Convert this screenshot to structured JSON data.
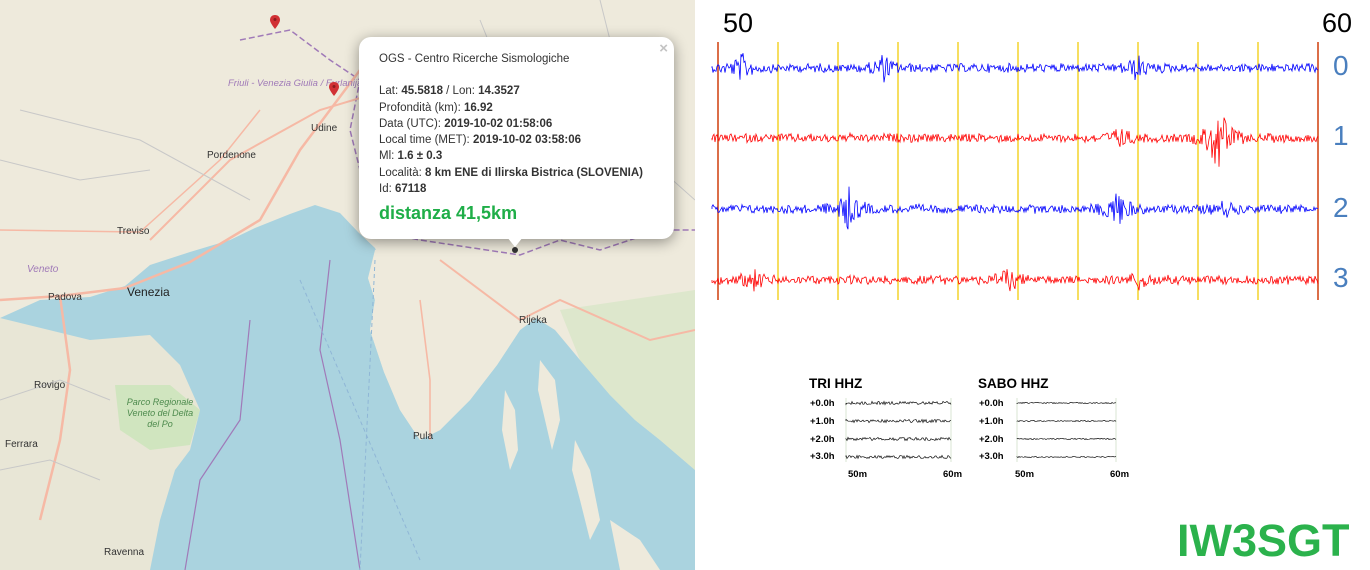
{
  "map": {
    "labels": {
      "friuli": "Friuli - Venezia Giulia / Furlanija - Julijska krajina",
      "udine": "Udine",
      "pordenone": "Pordenone",
      "treviso": "Treviso",
      "veneto": "Veneto",
      "venezia": "Venezia",
      "padova": "Padova",
      "rovigo": "Rovigo",
      "parco": "Parco Regionale Veneto del Delta del Po",
      "ferrara": "Ferrara",
      "ravenna": "Ravenna",
      "pula": "Pula",
      "rijeka": "Rijeka"
    },
    "colors": {
      "land": "#eeeadc",
      "sea": "#aad3df",
      "marker": "#d13034",
      "border": "#a07ab8",
      "road": "#f6b9a5"
    }
  },
  "popup": {
    "org": "OGS - Centro Ricerche Sismologiche",
    "close": "×",
    "lat_label": "Lat:",
    "lat": "45.5818",
    "lon_label": "/ Lon:",
    "lon": "14.3527",
    "depth_label": "Profondità (km):",
    "depth": "16.92",
    "utc_label": "Data (UTC):",
    "utc": "2019-10-02 01:58:06",
    "met_label": "Local time (MET):",
    "met": "2019-10-02 03:58:06",
    "ml_label": "Ml:",
    "ml": "1.6 ± 0.3",
    "loc_label": "Località:",
    "loc": "8 km ENE di Ilirska Bistrica (SLOVENIA)",
    "id_label": "Id:",
    "id": "67118",
    "distance": "distanza 41,5km"
  },
  "seismogram": {
    "x_start": "50",
    "x_end": "60",
    "channels": [
      "0",
      "1",
      "2",
      "3"
    ],
    "colors": {
      "blue": "#0000ff",
      "red": "#ff0000",
      "grid": "#f2cc0c",
      "edge": "#d24a1a",
      "label": "#4a7fbe"
    }
  },
  "thumbnails": [
    {
      "title": "TRI HHZ",
      "rows": [
        "+0.0h",
        "+1.0h",
        "+2.0h",
        "+3.0h"
      ],
      "x_start": "50m",
      "x_end": "60m"
    },
    {
      "title": "SABO HHZ",
      "rows": [
        "+0.0h",
        "+1.0h",
        "+2.0h",
        "+3.0h"
      ],
      "x_start": "50m",
      "x_end": "60m"
    }
  ],
  "callsign": "IW3SGT"
}
